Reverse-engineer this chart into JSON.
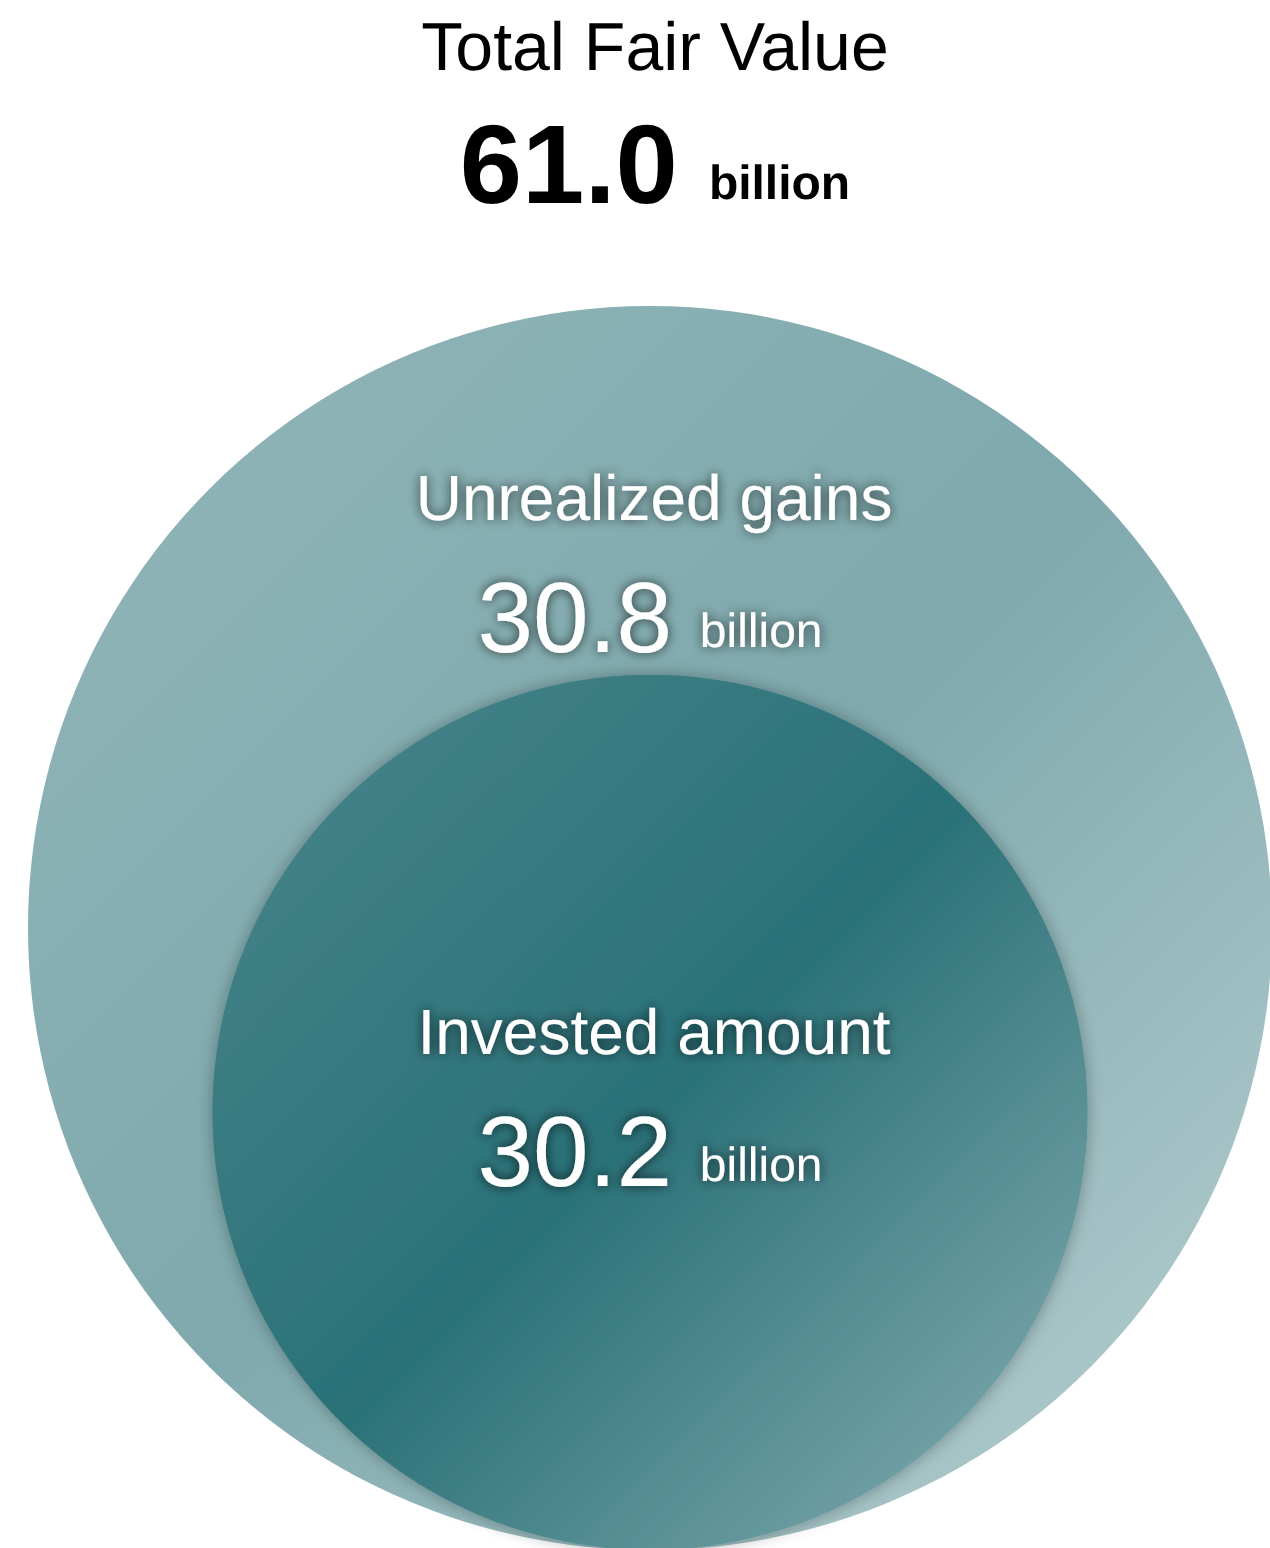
{
  "chart_data": {
    "type": "other",
    "title": "Total Fair Value",
    "subtitle": "61.0 billion",
    "categories": [
      "Unrealized gains",
      "Invested amount"
    ],
    "values": [
      30.8,
      30.2
    ],
    "colors": [
      "#7fa9ad",
      "#2a7178"
    ],
    "value_labels": [
      "30.8 billion",
      "30.2 billion"
    ]
  }
}
